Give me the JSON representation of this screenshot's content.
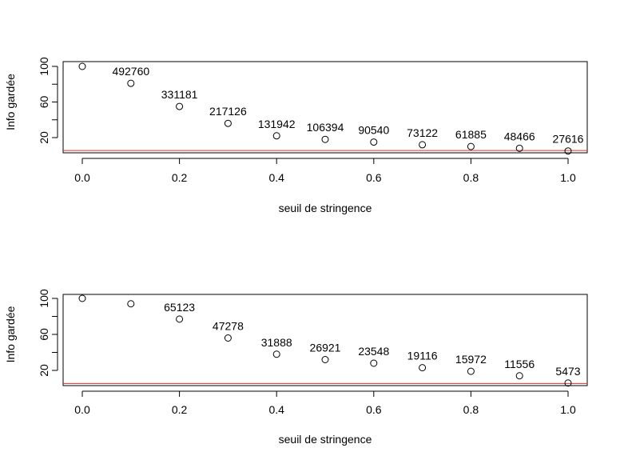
{
  "chart_data": [
    {
      "type": "scatter",
      "xlabel": "seuil de stringence",
      "ylabel": "Info gardée",
      "xlim": [
        0,
        1
      ],
      "ylim": [
        4,
        104
      ],
      "xticks": [
        "0.0",
        "0.2",
        "0.4",
        "0.6",
        "0.8",
        "1.0"
      ],
      "yticks": [
        "20",
        "60",
        "100"
      ],
      "grid": false,
      "reference_line": {
        "y": 5.5,
        "color": "#e0302a"
      },
      "points": [
        {
          "x": 0.0,
          "y": 100,
          "label": ""
        },
        {
          "x": 0.1,
          "y": 81,
          "label": "492760"
        },
        {
          "x": 0.2,
          "y": 55,
          "label": "331181"
        },
        {
          "x": 0.3,
          "y": 36,
          "label": "217126"
        },
        {
          "x": 0.4,
          "y": 22,
          "label": "131942"
        },
        {
          "x": 0.5,
          "y": 18,
          "label": "106394"
        },
        {
          "x": 0.6,
          "y": 15,
          "label": "90540"
        },
        {
          "x": 0.7,
          "y": 12,
          "label": "73122"
        },
        {
          "x": 0.8,
          "y": 10,
          "label": "61885"
        },
        {
          "x": 0.9,
          "y": 8,
          "label": "48466"
        },
        {
          "x": 1.0,
          "y": 5,
          "label": "27616"
        }
      ]
    },
    {
      "type": "scatter",
      "xlabel": "seuil de stringence",
      "ylabel": "Info gardée",
      "xlim": [
        0,
        1
      ],
      "ylim": [
        4,
        104
      ],
      "xticks": [
        "0.0",
        "0.2",
        "0.4",
        "0.6",
        "0.8",
        "1.0"
      ],
      "yticks": [
        "20",
        "60",
        "100"
      ],
      "grid": false,
      "reference_line": {
        "y": 5.5,
        "color": "#e0302a"
      },
      "points": [
        {
          "x": 0.0,
          "y": 100,
          "label": ""
        },
        {
          "x": 0.1,
          "y": 94,
          "label": ""
        },
        {
          "x": 0.2,
          "y": 77,
          "label": "65123"
        },
        {
          "x": 0.3,
          "y": 56,
          "label": "47278"
        },
        {
          "x": 0.4,
          "y": 38,
          "label": "31888"
        },
        {
          "x": 0.5,
          "y": 32,
          "label": "26921"
        },
        {
          "x": 0.6,
          "y": 28,
          "label": "23548"
        },
        {
          "x": 0.7,
          "y": 23,
          "label": "19116"
        },
        {
          "x": 0.8,
          "y": 19,
          "label": "15972"
        },
        {
          "x": 0.9,
          "y": 14,
          "label": "11556"
        },
        {
          "x": 1.0,
          "y": 6,
          "label": "5473"
        }
      ]
    }
  ]
}
